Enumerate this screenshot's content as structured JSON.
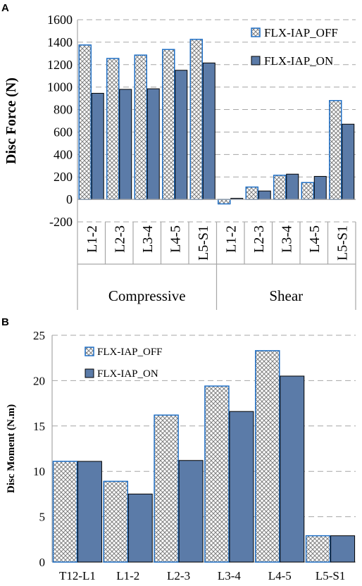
{
  "colors": {
    "off_stroke": "#1f6fc5",
    "off_hatch": "#7f7f7f",
    "on_fill": "#5b7ba8",
    "on_stroke": "#000000",
    "grid": "#a6a6a6"
  },
  "chart_data": [
    {
      "panel": "A",
      "type": "bar",
      "ylabel": "Disc Force (N)",
      "ylim": [
        -200,
        1600
      ],
      "yticks": [
        -200,
        0,
        200,
        400,
        600,
        800,
        1000,
        1200,
        1400,
        1600
      ],
      "grid": true,
      "legend_position": "top-right",
      "groups": [
        {
          "name": "Compressive",
          "categories": [
            "L1-2",
            "L2-3",
            "L3-4",
            "L4-5",
            "L5-S1"
          ]
        },
        {
          "name": "Shear",
          "categories": [
            "L1-2",
            "L2-3",
            "L3-4",
            "L4-5",
            "L5-S1"
          ]
        }
      ],
      "series": [
        {
          "name": "FLX-IAP_OFF",
          "values": [
            1375,
            1255,
            1285,
            1335,
            1425,
            -40,
            110,
            215,
            150,
            880
          ]
        },
        {
          "name": "FLX-IAP_ON",
          "values": [
            945,
            980,
            985,
            1150,
            1215,
            10,
            75,
            225,
            205,
            670
          ]
        }
      ]
    },
    {
      "panel": "B",
      "type": "bar",
      "ylabel": "Disc Moment (N.m)",
      "ylim": [
        0,
        25
      ],
      "yticks": [
        0,
        5,
        10,
        15,
        20,
        25
      ],
      "grid": true,
      "legend_position": "top-left",
      "categories": [
        "T12-L1",
        "L1-2",
        "L2-3",
        "L3-4",
        "L4-5",
        "L5-S1"
      ],
      "series": [
        {
          "name": "FLX-IAP_OFF",
          "values": [
            11.1,
            8.9,
            16.2,
            19.4,
            23.3,
            2.9
          ]
        },
        {
          "name": "FLX-IAP_ON",
          "values": [
            11.1,
            7.5,
            11.2,
            16.6,
            20.5,
            2.9
          ]
        }
      ]
    }
  ]
}
